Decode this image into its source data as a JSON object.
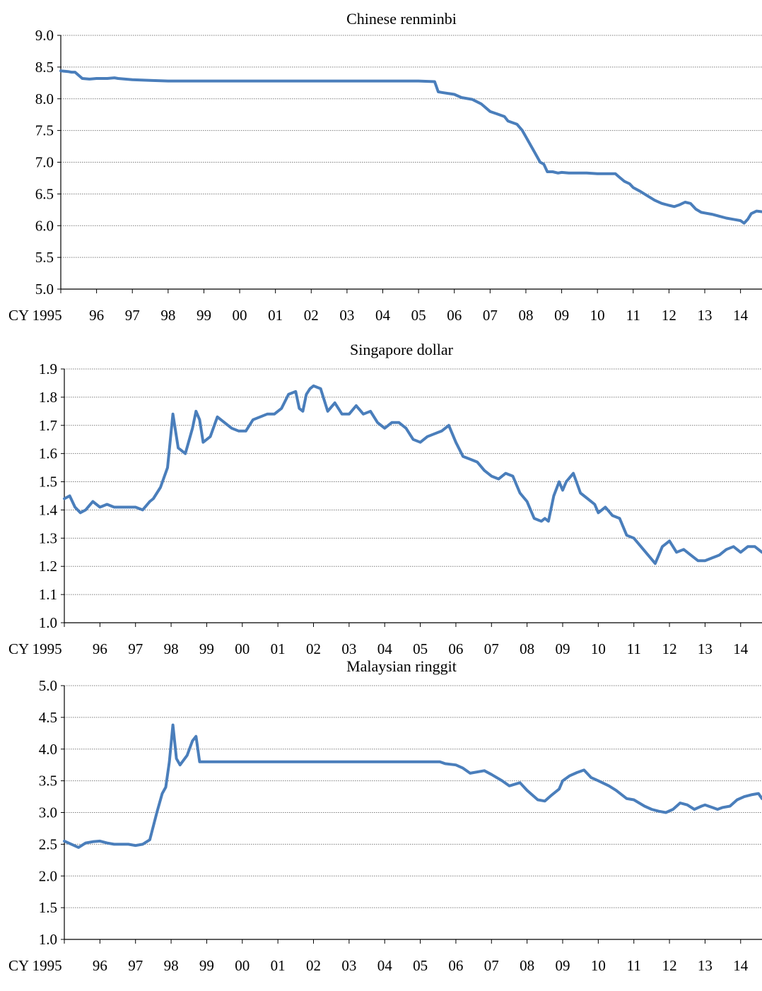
{
  "style": {
    "line_color": "#4a7ebb",
    "grid_color": "#7f7f7f",
    "axis_color": "#000000"
  },
  "chart_data": [
    {
      "type": "line",
      "title": "Chinese renminbi",
      "xlabel": "",
      "ylabel": "",
      "ylim": [
        5.0,
        9.0
      ],
      "yticks": [
        "5.0",
        "5.5",
        "6.0",
        "6.5",
        "7.0",
        "7.5",
        "8.0",
        "8.5",
        "9.0"
      ],
      "xlim": [
        1995,
        2014.6
      ],
      "xticks": [
        "CY 1995",
        "96",
        "97",
        "98",
        "99",
        "00",
        "01",
        "02",
        "03",
        "04",
        "05",
        "06",
        "07",
        "08",
        "09",
        "10",
        "11",
        "12",
        "13",
        "14"
      ],
      "grid": "horizontal dotted",
      "legend": "none",
      "series": [
        {
          "x": [
            1995.0,
            1995.2,
            1995.3,
            1995.4,
            1995.6,
            1995.8,
            1996.0,
            1996.2,
            1996.3,
            1996.5,
            1996.6,
            1997.0,
            1997.5,
            1998.0,
            1999.0,
            2005.0,
            2005.45,
            2005.55,
            2005.65,
            2006.0,
            2006.2,
            2006.5,
            2006.75,
            2007.0,
            2007.2,
            2007.4,
            2007.5,
            2007.75,
            2007.9,
            2008.0,
            2008.2,
            2008.4,
            2008.5,
            2008.6,
            2008.75,
            2008.9,
            2009.0,
            2009.2,
            2009.4,
            2009.7,
            2010.0,
            2010.5,
            2010.6,
            2010.75,
            2010.9,
            2011.0,
            2011.2,
            2011.4,
            2011.6,
            2011.8,
            2012.0,
            2012.15,
            2012.3,
            2012.45,
            2012.6,
            2012.75,
            2012.9,
            2013.0,
            2013.2,
            2013.4,
            2013.6,
            2013.8,
            2014.0,
            2014.1,
            2014.2,
            2014.3,
            2014.45,
            2014.6
          ],
          "y": [
            8.44,
            8.43,
            8.42,
            8.42,
            8.32,
            8.31,
            8.32,
            8.32,
            8.32,
            8.33,
            8.32,
            8.3,
            8.29,
            8.28,
            8.28,
            8.28,
            8.27,
            8.11,
            8.1,
            8.07,
            8.02,
            7.99,
            7.92,
            7.8,
            7.76,
            7.72,
            7.65,
            7.6,
            7.5,
            7.4,
            7.2,
            7.0,
            6.97,
            6.85,
            6.85,
            6.83,
            6.84,
            6.83,
            6.83,
            6.83,
            6.82,
            6.82,
            6.77,
            6.7,
            6.66,
            6.6,
            6.54,
            6.47,
            6.4,
            6.35,
            6.32,
            6.3,
            6.33,
            6.37,
            6.35,
            6.26,
            6.21,
            6.2,
            6.18,
            6.15,
            6.12,
            6.1,
            6.08,
            6.04,
            6.1,
            6.19,
            6.23,
            6.22
          ]
        }
      ]
    },
    {
      "type": "line",
      "title": "Singapore dollar",
      "xlabel": "",
      "ylabel": "",
      "ylim": [
        1.0,
        1.9
      ],
      "yticks": [
        "1.0",
        "1.1",
        "1.2",
        "1.3",
        "1.4",
        "1.5",
        "1.6",
        "1.7",
        "1.8",
        "1.9"
      ],
      "xlim": [
        1995,
        2014.6
      ],
      "xticks": [
        "CY 1995",
        "96",
        "97",
        "98",
        "99",
        "00",
        "01",
        "02",
        "03",
        "04",
        "05",
        "06",
        "07",
        "08",
        "09",
        "10",
        "11",
        "12",
        "13",
        "14"
      ],
      "grid": "horizontal dotted",
      "legend": "none",
      "series": [
        {
          "x": [
            1995.0,
            1995.15,
            1995.3,
            1995.45,
            1995.6,
            1995.8,
            1996.0,
            1996.2,
            1996.4,
            1996.6,
            1996.8,
            1997.0,
            1997.2,
            1997.4,
            1997.5,
            1997.7,
            1997.9,
            1998.05,
            1998.2,
            1998.4,
            1998.6,
            1998.7,
            1998.8,
            1998.9,
            1999.1,
            1999.3,
            1999.5,
            1999.7,
            1999.9,
            2000.1,
            2000.3,
            2000.5,
            2000.7,
            2000.9,
            2001.1,
            2001.3,
            2001.5,
            2001.6,
            2001.7,
            2001.8,
            2001.9,
            2002.0,
            2002.2,
            2002.4,
            2002.6,
            2002.8,
            2003.0,
            2003.2,
            2003.4,
            2003.6,
            2003.8,
            2004.0,
            2004.2,
            2004.4,
            2004.6,
            2004.8,
            2005.0,
            2005.2,
            2005.4,
            2005.6,
            2005.8,
            2006.0,
            2006.2,
            2006.4,
            2006.6,
            2006.8,
            2007.0,
            2007.2,
            2007.4,
            2007.6,
            2007.8,
            2008.0,
            2008.2,
            2008.4,
            2008.5,
            2008.6,
            2008.75,
            2008.9,
            2009.0,
            2009.1,
            2009.3,
            2009.5,
            2009.7,
            2009.9,
            2010.0,
            2010.2,
            2010.4,
            2010.6,
            2010.8,
            2011.0,
            2011.2,
            2011.4,
            2011.6,
            2011.8,
            2012.0,
            2012.2,
            2012.4,
            2012.6,
            2012.8,
            2013.0,
            2013.2,
            2013.4,
            2013.6,
            2013.8,
            2014.0,
            2014.2,
            2014.4,
            2014.6
          ],
          "y": [
            1.44,
            1.45,
            1.41,
            1.39,
            1.4,
            1.43,
            1.41,
            1.42,
            1.41,
            1.41,
            1.41,
            1.41,
            1.4,
            1.43,
            1.44,
            1.48,
            1.55,
            1.74,
            1.62,
            1.6,
            1.69,
            1.75,
            1.72,
            1.64,
            1.66,
            1.73,
            1.71,
            1.69,
            1.68,
            1.68,
            1.72,
            1.73,
            1.74,
            1.74,
            1.76,
            1.81,
            1.82,
            1.76,
            1.75,
            1.81,
            1.83,
            1.84,
            1.83,
            1.75,
            1.78,
            1.74,
            1.74,
            1.77,
            1.74,
            1.75,
            1.71,
            1.69,
            1.71,
            1.71,
            1.69,
            1.65,
            1.64,
            1.66,
            1.67,
            1.68,
            1.7,
            1.64,
            1.59,
            1.58,
            1.57,
            1.54,
            1.52,
            1.51,
            1.53,
            1.52,
            1.46,
            1.43,
            1.37,
            1.36,
            1.37,
            1.36,
            1.45,
            1.5,
            1.47,
            1.5,
            1.53,
            1.46,
            1.44,
            1.42,
            1.39,
            1.41,
            1.38,
            1.37,
            1.31,
            1.3,
            1.27,
            1.24,
            1.21,
            1.27,
            1.29,
            1.25,
            1.26,
            1.24,
            1.22,
            1.22,
            1.23,
            1.24,
            1.26,
            1.27,
            1.25,
            1.27,
            1.27,
            1.25
          ]
        }
      ]
    },
    {
      "type": "line",
      "title": "Malaysian ringgit",
      "xlabel": "",
      "ylabel": "",
      "ylim": [
        1.0,
        5.0
      ],
      "yticks": [
        "1.0",
        "1.5",
        "2.0",
        "2.5",
        "3.0",
        "3.5",
        "4.0",
        "4.5",
        "5.0"
      ],
      "xlim": [
        1995,
        2014.6
      ],
      "xticks": [
        "CY 1995",
        "96",
        "97",
        "98",
        "99",
        "00",
        "01",
        "02",
        "03",
        "04",
        "05",
        "06",
        "07",
        "08",
        "09",
        "10",
        "11",
        "12",
        "13",
        "14"
      ],
      "grid": "horizontal dotted",
      "legend": "none",
      "series": [
        {
          "x": [
            1995.0,
            1995.2,
            1995.4,
            1995.6,
            1995.8,
            1996.0,
            1996.2,
            1996.4,
            1996.6,
            1996.8,
            1997.0,
            1997.2,
            1997.4,
            1997.6,
            1997.75,
            1997.85,
            1997.95,
            1998.05,
            1998.15,
            1998.25,
            1998.45,
            1998.6,
            1998.7,
            1998.8,
            1999.0,
            2005.55,
            2005.7,
            2006.0,
            2006.2,
            2006.4,
            2006.8,
            2007.0,
            2007.3,
            2007.5,
            2007.8,
            2008.0,
            2008.3,
            2008.5,
            2008.7,
            2008.9,
            2009.0,
            2009.2,
            2009.4,
            2009.6,
            2009.8,
            2010.0,
            2010.3,
            2010.5,
            2010.8,
            2011.0,
            2011.3,
            2011.5,
            2011.7,
            2011.9,
            2012.1,
            2012.3,
            2012.5,
            2012.7,
            2012.9,
            2013.0,
            2013.2,
            2013.35,
            2013.5,
            2013.7,
            2013.9,
            2014.1,
            2014.3,
            2014.5,
            2014.6
          ],
          "y": [
            2.55,
            2.5,
            2.45,
            2.52,
            2.54,
            2.55,
            2.52,
            2.5,
            2.5,
            2.5,
            2.48,
            2.5,
            2.57,
            3.0,
            3.3,
            3.4,
            3.8,
            4.38,
            3.85,
            3.75,
            3.9,
            4.13,
            4.2,
            3.8,
            3.8,
            3.8,
            3.77,
            3.75,
            3.7,
            3.62,
            3.66,
            3.6,
            3.5,
            3.42,
            3.47,
            3.35,
            3.2,
            3.18,
            3.28,
            3.37,
            3.5,
            3.58,
            3.63,
            3.67,
            3.55,
            3.5,
            3.42,
            3.35,
            3.22,
            3.2,
            3.1,
            3.05,
            3.02,
            3.0,
            3.05,
            3.15,
            3.12,
            3.05,
            3.1,
            3.12,
            3.08,
            3.05,
            3.08,
            3.1,
            3.2,
            3.25,
            3.28,
            3.3,
            3.22
          ]
        }
      ]
    }
  ]
}
